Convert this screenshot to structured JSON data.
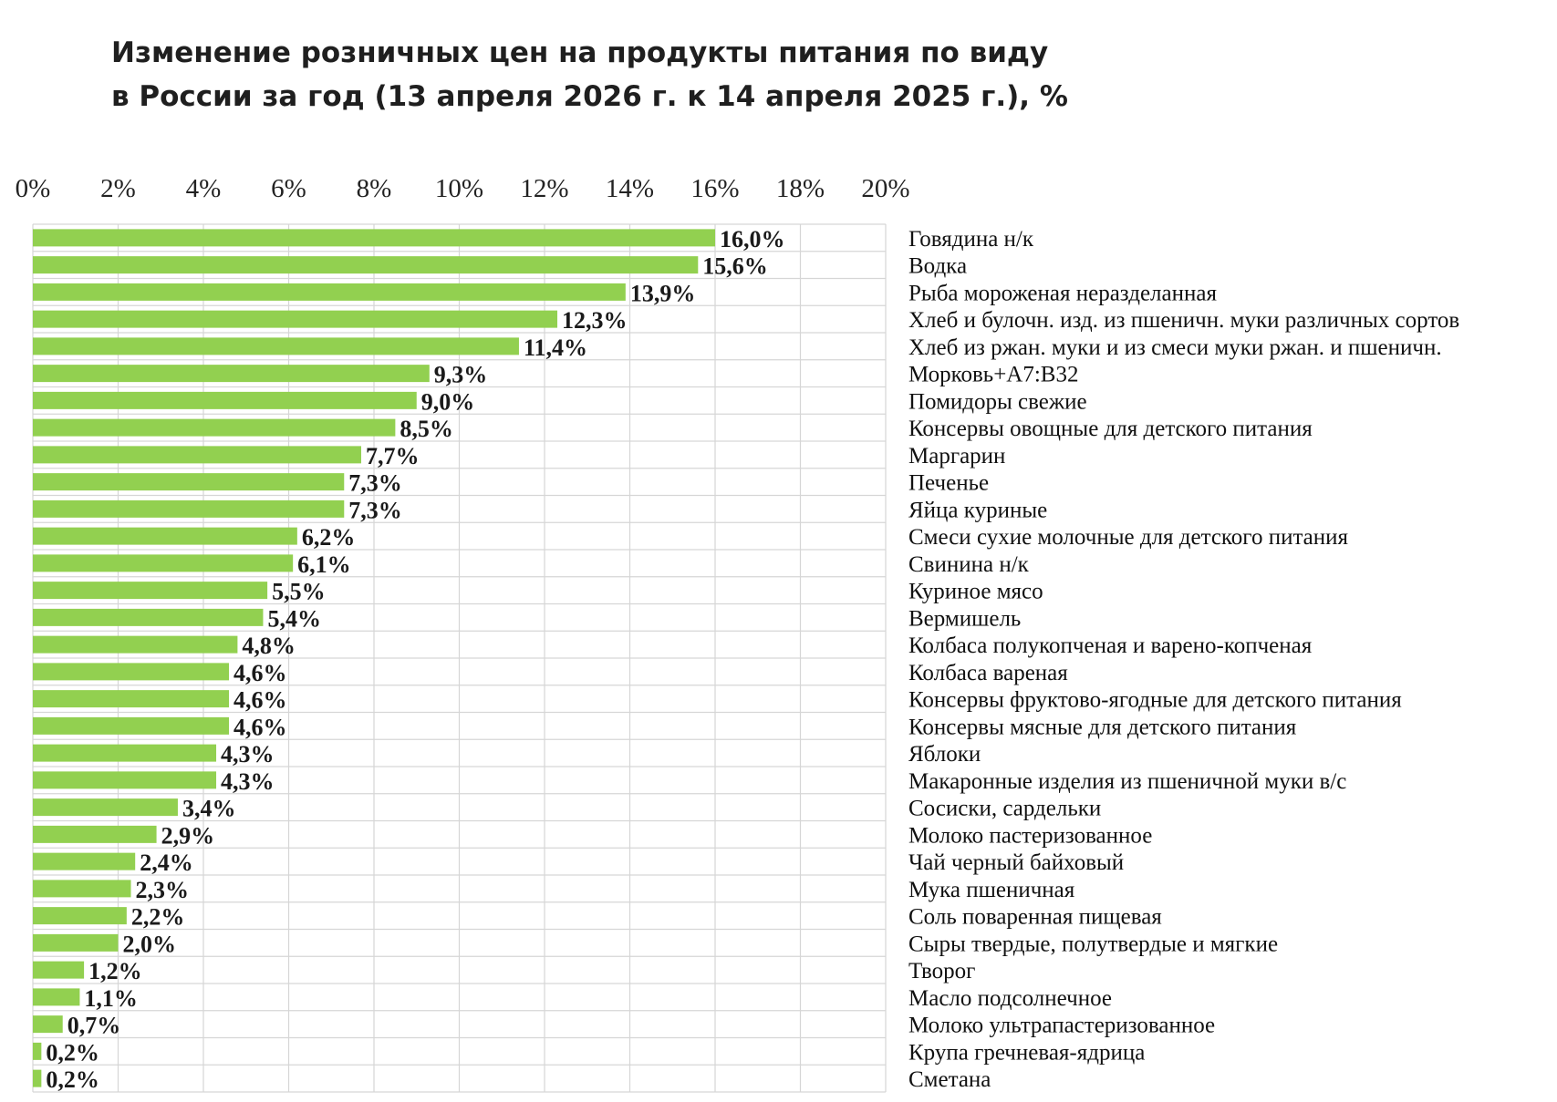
{
  "chart_data": {
    "type": "bar",
    "orientation": "horizontal",
    "title": [
      "Изменение розничных цен на продукты питания по виду",
      "в России за год (13 апреля 2026 г. к 14 апреля 2025 г.), %"
    ],
    "xlim": [
      0,
      20
    ],
    "x_ticks": [
      "0%",
      "2%",
      "4%",
      "6%",
      "8%",
      "10%",
      "12%",
      "14%",
      "16%",
      "18%",
      "20%"
    ],
    "x_axis_position": "top",
    "category_labels_position": "right",
    "grid": true,
    "bar_color": "#92d050",
    "categories": [
      "Говядина н/к",
      "Водка",
      "Рыба мороженая неразделанная",
      "Хлеб и булочн. изд. из пшеничн. муки различных сортов",
      "Хлеб из ржан. муки и из смеси муки ржан. и пшеничн.",
      "Морковь+A7:B32",
      "Помидоры свежие",
      "Консервы овощные для детского питания",
      "Маргарин",
      "Печенье",
      "Яйца куриные",
      "Смеси сухие молочные для детского питания",
      "Свинина н/к",
      "Куриное мясо",
      "Вермишель",
      "Колбаса полукопченая и варено-копченая",
      "Колбаса вареная",
      "Консервы фруктово-ягодные для детского питания",
      "Консервы мясные для детского питания",
      "Яблоки",
      "Макаронные изделия из пшеничной муки в/с",
      "Сосиски, сардельки",
      "Молоко пастеризованное",
      "Чай черный байховый",
      "Мука пшеничная",
      "Соль поваренная пищевая",
      "Сыры твердые, полутвердые и мягкие",
      "Творог",
      "Масло подсолнечное",
      "Молоко ультрапастеризованное",
      "Крупа гречневая-ядрица",
      "Сметана"
    ],
    "values": [
      16.0,
      15.6,
      13.9,
      12.3,
      11.4,
      9.3,
      9.0,
      8.5,
      7.7,
      7.3,
      7.3,
      6.2,
      6.1,
      5.5,
      5.4,
      4.8,
      4.6,
      4.6,
      4.6,
      4.3,
      4.3,
      3.4,
      2.9,
      2.4,
      2.3,
      2.2,
      2.0,
      1.2,
      1.1,
      0.7,
      0.2,
      0.2
    ],
    "value_labels": [
      "16,0%",
      "15,6%",
      "13,9%",
      "12,3%",
      "11,4%",
      "9,3%",
      "9,0%",
      "8,5%",
      "7,7%",
      "7,3%",
      "7,3%",
      "6,2%",
      "6,1%",
      "5,5%",
      "5,4%",
      "4,8%",
      "4,6%",
      "4,6%",
      "4,6%",
      "4,3%",
      "4,3%",
      "3,4%",
      "2,9%",
      "2,4%",
      "2,3%",
      "2,2%",
      "2,0%",
      "1,2%",
      "1,1%",
      "0,7%",
      "0,2%",
      "0,2%"
    ]
  }
}
